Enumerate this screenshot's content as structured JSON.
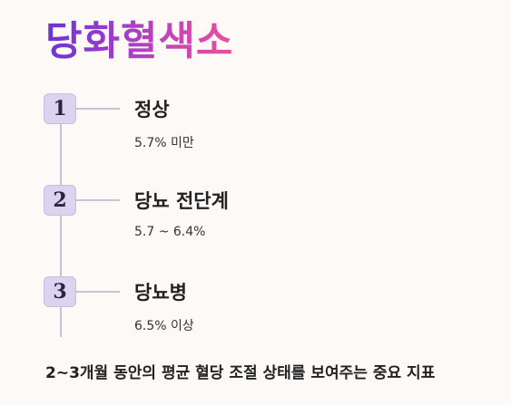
{
  "title": "당화혈색소",
  "steps": [
    {
      "number": "1",
      "title": "정상",
      "value": "5.7% 미만"
    },
    {
      "number": "2",
      "title": "당뇨 전단계",
      "value": "5.7 ~ 6.4%"
    },
    {
      "number": "3",
      "title": "당뇨병",
      "value": "6.5% 이상"
    }
  ],
  "footer": "2~3개월 동안의 평균 혈당 조절 상태를 보여주는 중요 지표"
}
